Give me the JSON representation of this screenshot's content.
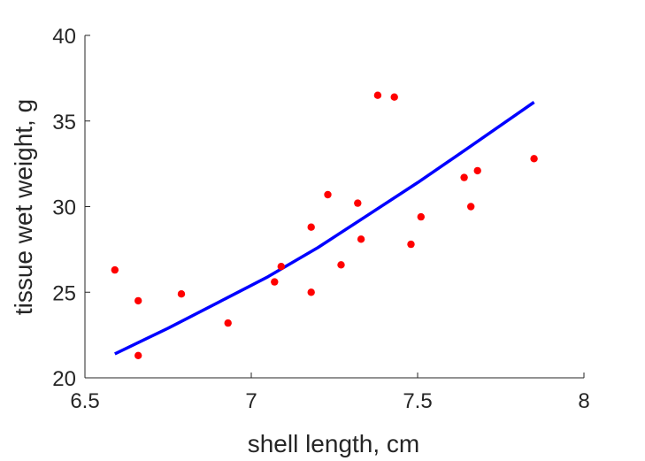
{
  "chart_data": {
    "type": "scatter",
    "title": "",
    "xlabel": "shell length, cm",
    "ylabel": "tissue wet weight, g",
    "xlim": [
      6.5,
      8
    ],
    "ylim": [
      20,
      40
    ],
    "x_ticks": [
      "6.5",
      "7",
      "7.5",
      "8"
    ],
    "y_ticks": [
      "20",
      "25",
      "30",
      "35",
      "40"
    ],
    "grid": false,
    "series": [
      {
        "type": "scatter",
        "color": "#ff0000",
        "points": [
          [
            6.59,
            26.3
          ],
          [
            6.66,
            24.5
          ],
          [
            6.66,
            21.3
          ],
          [
            6.79,
            24.9
          ],
          [
            6.93,
            23.2
          ],
          [
            7.07,
            25.6
          ],
          [
            7.09,
            26.5
          ],
          [
            7.18,
            28.8
          ],
          [
            7.18,
            25.0
          ],
          [
            7.23,
            30.7
          ],
          [
            7.27,
            26.6
          ],
          [
            7.32,
            30.2
          ],
          [
            7.33,
            28.1
          ],
          [
            7.38,
            36.5
          ],
          [
            7.43,
            36.4
          ],
          [
            7.48,
            27.8
          ],
          [
            7.51,
            29.4
          ],
          [
            7.64,
            31.7
          ],
          [
            7.66,
            30.0
          ],
          [
            7.68,
            32.1
          ],
          [
            7.85,
            32.8
          ]
        ]
      },
      {
        "type": "line",
        "color": "#0000ff",
        "points": [
          [
            6.59,
            21.4
          ],
          [
            6.75,
            22.9
          ],
          [
            6.9,
            24.4
          ],
          [
            7.05,
            25.9
          ],
          [
            7.2,
            27.6
          ],
          [
            7.35,
            29.5
          ],
          [
            7.5,
            31.4
          ],
          [
            7.65,
            33.4
          ],
          [
            7.85,
            36.1
          ]
        ]
      }
    ]
  }
}
